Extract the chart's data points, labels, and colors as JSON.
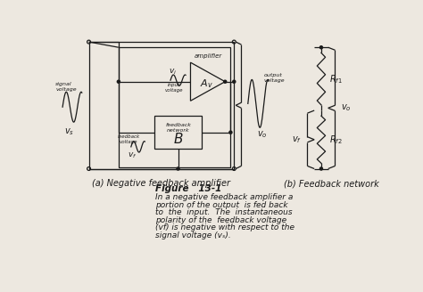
{
  "bg_color": "#ede8e0",
  "line_color": "#1a1a1a",
  "text_color": "#1a1a1a",
  "fig_width": 4.74,
  "fig_height": 3.28,
  "caption_title": "Figure   13-1",
  "caption_line1": "In a negative feedback amplifier a",
  "caption_line2": "portion of the output  is fed back",
  "caption_line3": "to  the  input.  The  instantaneous",
  "caption_line4": "polarity of the  feedback voltage",
  "caption_line5": "(vf) is negative with respect to the",
  "caption_line6": "signal voltage (vₛ).",
  "label_a": "(a) Negative feedback amplifier",
  "label_b": "(b) Feedback network"
}
